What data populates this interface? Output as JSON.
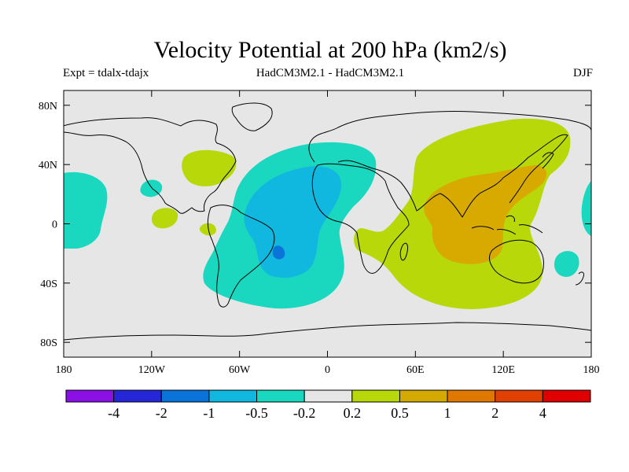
{
  "title": "Velocity Potential at 200 hPa (km2/s)",
  "subtitle_left": "Expt = tdalx-tdajx",
  "subtitle_center": "HadCM3M2.1 - HadCM3M2.1",
  "subtitle_right": "DJF",
  "chart_data": {
    "type": "heatmap",
    "title": "Velocity Potential at 200 hPa (km2/s)",
    "experiment": "tdalx-tdajx",
    "models": "HadCM3M2.1 - HadCM3M2.1",
    "season": "DJF",
    "projection": "cylindrical equidistant",
    "xlim": [
      -180,
      180
    ],
    "ylim": [
      -90,
      90
    ],
    "x_ticks": [
      {
        "value": -180,
        "label": "180"
      },
      {
        "value": -120,
        "label": "120W"
      },
      {
        "value": -60,
        "label": "60W"
      },
      {
        "value": 0,
        "label": "0"
      },
      {
        "value": 60,
        "label": "60E"
      },
      {
        "value": 120,
        "label": "120E"
      },
      {
        "value": 180,
        "label": "180"
      }
    ],
    "y_ticks": [
      {
        "value": 80,
        "label": "80N"
      },
      {
        "value": 40,
        "label": "40N"
      },
      {
        "value": 0,
        "label": "0"
      },
      {
        "value": -40,
        "label": "40S"
      },
      {
        "value": -80,
        "label": "80S"
      }
    ],
    "colorbar": {
      "levels": [
        "-4",
        "-2",
        "-1",
        "-0.5",
        "-0.2",
        "0.2",
        "0.5",
        "1",
        "2",
        "4"
      ],
      "colors": [
        "#8b10e6",
        "#2626d9",
        "#0a73d9",
        "#10b8df",
        "#18d8bf",
        "#e6e6e6",
        "#b8d80a",
        "#d4aa00",
        "#e07800",
        "#e04000",
        "#e00000"
      ]
    },
    "contour_fill_colors": {
      "neutral": "#e6e6e6",
      "neg_0_2": "#19d8bf",
      "neg_0_5": "#10b8df",
      "neg_1": "#0a74d8",
      "pos_0_2": "#b8d80a",
      "pos_0_5": "#d8aa00"
    }
  }
}
